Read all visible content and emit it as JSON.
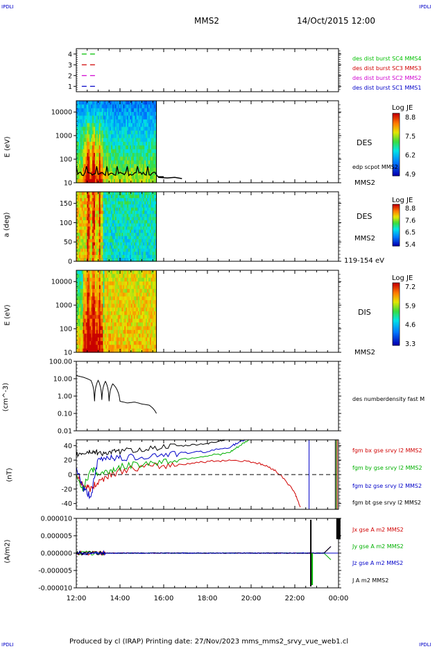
{
  "header": {
    "spacecraft": "MMS2",
    "date": "14/Oct/2015 12:00",
    "corner_tl": "IPDLI",
    "corner_tr": "IPDLI",
    "corner_bl": "IPDLI",
    "corner_br": "IPDLI"
  },
  "footer": {
    "text": "Produced by cl (IRAP)   Printing date: 27/Nov/2023   mms_mms2_srvy_vue_web1.cl"
  },
  "colors": {
    "mms1": "#0000c8",
    "mms2": "#d000d0",
    "mms3": "#d00000",
    "mms4": "#00c000",
    "bx": "#d00000",
    "by": "#00b000",
    "bz": "#0000c8",
    "bt": "#000000"
  },
  "chart_data": [
    {
      "type": "line",
      "panel": "burst",
      "ytick_labels": [
        "4",
        "3",
        "2",
        "1"
      ],
      "ylim": [
        0.5,
        4.5
      ],
      "series": [
        {
          "name": "des dist burst SC1 MMS1",
          "y": 1,
          "color": "#0000c8",
          "t_start": "12:15",
          "t_end": "13:00"
        },
        {
          "name": "des dist burst SC2 MMS2",
          "y": 2,
          "color": "#d000d0",
          "t_start": "12:15",
          "t_end": "13:00"
        },
        {
          "name": "des dist burst SC3 MMS3",
          "y": 3,
          "color": "#d00000",
          "t_start": "12:15",
          "t_end": "13:00"
        },
        {
          "name": "des dist burst SC4 MMS4",
          "y": 4,
          "color": "#00c000",
          "t_start": "12:15",
          "t_end": "13:00"
        }
      ]
    },
    {
      "type": "heatmap",
      "panel": "des-energy",
      "ylabel": "E (eV)",
      "yscale": "log",
      "ylim": [
        10,
        30000
      ],
      "ytick_labels": [
        "10000",
        "1000",
        "100",
        "10"
      ],
      "label": "DES",
      "sublabel": "MMS2",
      "overlay": "edp scpot MMS2",
      "colorbar_title": "Log JE",
      "colorbar_ticks": [
        "8.8",
        "7.5",
        "6.2",
        "4.9"
      ],
      "data_end": "15:40"
    },
    {
      "type": "heatmap",
      "panel": "des-pitch",
      "ylabel": "a (deg)",
      "ylim": [
        0,
        180
      ],
      "ytick_labels": [
        "150",
        "100",
        "50",
        "0"
      ],
      "label": "DES",
      "sublabel": "MMS2",
      "energy_range": "119-154 eV",
      "colorbar_title": "Log JE",
      "colorbar_ticks": [
        "8.8",
        "7.6",
        "6.5",
        "5.4"
      ],
      "data_end": "15:40"
    },
    {
      "type": "heatmap",
      "panel": "dis-energy",
      "ylabel": "E (eV)",
      "yscale": "log",
      "ylim": [
        10,
        30000
      ],
      "ytick_labels": [
        "10000",
        "1000",
        "100",
        "10"
      ],
      "label": "DIS",
      "sublabel": "MMS2",
      "colorbar_title": "Log JE",
      "colorbar_ticks": [
        "7.2",
        "5.9",
        "4.6",
        "3.3"
      ],
      "data_end": "15:40"
    },
    {
      "type": "line",
      "panel": "density",
      "ylabel": "(cm^-3)",
      "yscale": "log",
      "ylim": [
        0.01,
        100
      ],
      "ytick_labels": [
        "100.00",
        "10.00",
        "1.00",
        "0.10",
        "0.01"
      ],
      "series": [
        {
          "name": "des numberdensity fast M",
          "color": "#000000",
          "x": [
            "12:00",
            "12:20",
            "12:40",
            "12:50",
            "13:00",
            "13:10",
            "13:20",
            "13:30",
            "13:40",
            "14:00",
            "14:20",
            "14:40",
            "15:00",
            "15:20",
            "15:40"
          ],
          "y": [
            15,
            12,
            8,
            0.5,
            8,
            0.6,
            7,
            0.5,
            5,
            0.5,
            0.4,
            0.45,
            0.35,
            0.3,
            0.1
          ]
        }
      ]
    },
    {
      "type": "line",
      "panel": "field",
      "ylabel": "(nT)",
      "ylim": [
        -48,
        48
      ],
      "ytick_labels": [
        "40",
        "20",
        "0",
        "-20",
        "-40"
      ],
      "series": [
        {
          "name": "fgm bx gse srvy l2 MMS2",
          "color": "#d00000",
          "x": [
            "12:00",
            "12:20",
            "12:40",
            "13:00",
            "13:30",
            "14:00",
            "15:00",
            "16:00",
            "17:00",
            "18:00",
            "19:00",
            "20:00",
            "20:30",
            "21:00",
            "21:30",
            "22:00",
            "22:15"
          ],
          "y": [
            0,
            -15,
            -20,
            -10,
            0,
            5,
            10,
            12,
            15,
            18,
            20,
            18,
            14,
            8,
            -5,
            -25,
            -45
          ]
        },
        {
          "name": "fgm by gse srvy l2 MMS2",
          "color": "#00b000",
          "x": [
            "12:00",
            "12:20",
            "12:40",
            "13:00",
            "13:30",
            "14:00",
            "15:00",
            "16:00",
            "17:00",
            "18:00",
            "19:00",
            "19:30",
            "20:00"
          ],
          "y": [
            -5,
            -20,
            10,
            0,
            5,
            10,
            15,
            18,
            22,
            26,
            30,
            40,
            50
          ]
        },
        {
          "name": "fgm bz gse srvy l2 MMS2",
          "color": "#0000c8",
          "x": [
            "12:00",
            "12:20",
            "12:40",
            "13:00",
            "13:30",
            "14:00",
            "15:00",
            "16:00",
            "17:00",
            "18:00",
            "19:00",
            "19:30",
            "20:00"
          ],
          "y": [
            10,
            -20,
            -30,
            20,
            25,
            22,
            25,
            28,
            30,
            32,
            38,
            45,
            50
          ]
        },
        {
          "name": "fgm bt gse srvy l2 MMS2",
          "color": "#000000",
          "x": [
            "12:00",
            "12:20",
            "12:40",
            "13:00",
            "13:30",
            "14:00",
            "15:00",
            "16:00",
            "17:00",
            "18:00",
            "18:30",
            "19:00"
          ],
          "y": [
            28,
            30,
            32,
            30,
            30,
            32,
            35,
            38,
            40,
            43,
            46,
            50
          ]
        }
      ]
    },
    {
      "type": "line",
      "panel": "current",
      "ylabel": "(A/m2)",
      "ylim": [
        -1e-05,
        1e-05
      ],
      "ytick_labels": [
        "0.000010",
        "0.000005",
        "0.000000",
        "-0.000005",
        "-0.000010"
      ],
      "series": [
        {
          "name": "Jx gse A m2 MMS2",
          "color": "#d00000"
        },
        {
          "name": "Jy gse A m2 MMS2",
          "color": "#00b000"
        },
        {
          "name": "Jz gse A m2 MMS2",
          "color": "#0000c8"
        },
        {
          "name": "J A m2 MMS2",
          "color": "#000000"
        }
      ]
    }
  ],
  "xaxis": {
    "tick_labels": [
      "12:00",
      "14:00",
      "16:00",
      "18:00",
      "20:00",
      "22:00",
      "00:00"
    ]
  }
}
